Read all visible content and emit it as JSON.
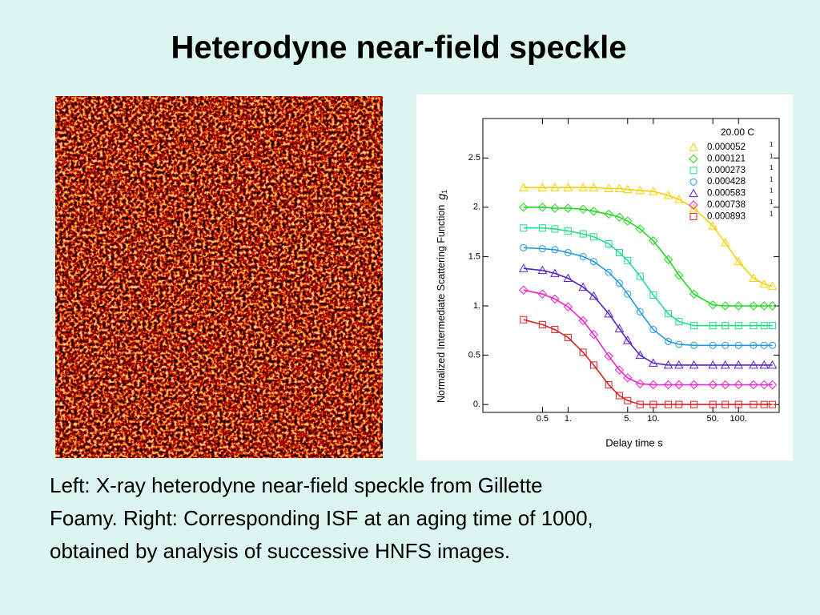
{
  "title": "Heterodyne near-field speckle",
  "caption": [
    "Left: X-ray heterodyne near-field speckle from Gillette",
    "Foamy. Right: Corresponding ISF at an aging time of 1000,",
    "obtained by analysis of successive HNFS images."
  ],
  "chart_data": {
    "type": "scatter",
    "xlabel": "Delay time  s",
    "ylabel": "Normalized Intermediate Scattering Function",
    "ylabel_symbol": "g",
    "ylabel_subscript": "1",
    "legend_title": "20.00  C",
    "legend_units": [
      "1",
      "1",
      "1",
      "1",
      "1",
      "1",
      "1"
    ],
    "legend": "upper right",
    "xscale": "log",
    "xlim": [
      0.1,
      300
    ],
    "ylim": [
      -0.08,
      2.9
    ],
    "xticks": [
      0.5,
      {
        "value": 1,
        "label": "1."
      },
      {
        "value": 5,
        "label": "5."
      },
      {
        "value": 10,
        "label": "10."
      },
      {
        "value": 50,
        "label": "50."
      },
      {
        "value": 100,
        "label": "100."
      }
    ],
    "yticks": [
      {
        "value": 0,
        "label": "0."
      },
      0.5,
      {
        "value": 1,
        "label": "1."
      },
      1.5,
      {
        "value": 2,
        "label": "2."
      },
      2.5
    ],
    "x": [
      0.3,
      0.5,
      0.7,
      1,
      1.5,
      2,
      3,
      4,
      5,
      7,
      10,
      15,
      20,
      30,
      50,
      70,
      100,
      150,
      200,
      250
    ],
    "series": [
      {
        "name": "0.000052",
        "color": "#f2d200",
        "marker": "triangle",
        "values": [
          2.2,
          2.2,
          2.2,
          2.2,
          2.2,
          2.2,
          2.19,
          2.19,
          2.18,
          2.17,
          2.16,
          2.12,
          2.08,
          1.99,
          1.81,
          1.64,
          1.45,
          1.28,
          1.22,
          1.2
        ]
      },
      {
        "name": "0.000121",
        "color": "#22d822",
        "marker": "diamond",
        "values": [
          2.0,
          2.0,
          1.99,
          1.99,
          1.98,
          1.96,
          1.93,
          1.9,
          1.86,
          1.78,
          1.66,
          1.47,
          1.31,
          1.12,
          1.01,
          1.0,
          1.0,
          1.0,
          1.0,
          1.0
        ]
      },
      {
        "name": "0.000273",
        "color": "#22dd88",
        "marker": "square",
        "values": [
          1.79,
          1.79,
          1.78,
          1.76,
          1.73,
          1.7,
          1.63,
          1.54,
          1.46,
          1.3,
          1.11,
          0.92,
          0.84,
          0.8,
          0.8,
          0.8,
          0.8,
          0.8,
          0.8,
          0.8
        ]
      },
      {
        "name": "0.000428",
        "color": "#2299dd",
        "marker": "circle",
        "values": [
          1.59,
          1.58,
          1.57,
          1.54,
          1.5,
          1.45,
          1.34,
          1.23,
          1.12,
          0.94,
          0.76,
          0.64,
          0.61,
          0.6,
          0.6,
          0.6,
          0.6,
          0.6,
          0.6,
          0.6
        ]
      },
      {
        "name": "0.000583",
        "color": "#5522cc",
        "marker": "triangle",
        "values": [
          1.38,
          1.36,
          1.33,
          1.28,
          1.19,
          1.1,
          0.92,
          0.77,
          0.65,
          0.5,
          0.42,
          0.4,
          0.4,
          0.4,
          0.4,
          0.4,
          0.4,
          0.4,
          0.4,
          0.4
        ]
      },
      {
        "name": "0.000738",
        "color": "#ee22cc",
        "marker": "diamond",
        "values": [
          1.16,
          1.12,
          1.07,
          0.99,
          0.85,
          0.71,
          0.49,
          0.35,
          0.27,
          0.21,
          0.2,
          0.2,
          0.2,
          0.2,
          0.2,
          0.2,
          0.2,
          0.2,
          0.2,
          0.2
        ]
      },
      {
        "name": "0.000893",
        "color": "#dd2222",
        "marker": "square",
        "values": [
          0.86,
          0.81,
          0.76,
          0.68,
          0.53,
          0.4,
          0.2,
          0.09,
          0.04,
          0.0,
          0.0,
          0.0,
          0.0,
          0.0,
          0.0,
          0.0,
          0.0,
          0.0,
          0.0,
          0.0
        ]
      }
    ]
  }
}
